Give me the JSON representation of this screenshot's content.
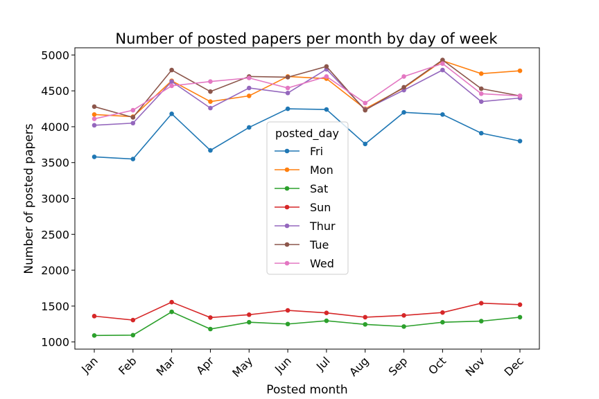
{
  "chart_data": {
    "type": "line",
    "title": "Number of posted papers per month by day of week",
    "xlabel": "Posted month",
    "ylabel": "Number of posted papers",
    "categories": [
      "Jan",
      "Feb",
      "Mar",
      "Apr",
      "May",
      "Jun",
      "Jul",
      "Aug",
      "Sep",
      "Oct",
      "Nov",
      "Dec"
    ],
    "ylim": [
      900,
      5100
    ],
    "yticks": [
      1000,
      1500,
      2000,
      2500,
      3000,
      3500,
      4000,
      4500,
      5000
    ],
    "grid": false,
    "legend": {
      "title": "posted_day",
      "placement": "center"
    },
    "series": [
      {
        "name": "Fri",
        "color": "#1f77b4",
        "values": [
          3580,
          3550,
          4180,
          3670,
          3990,
          4250,
          4240,
          3760,
          4200,
          4170,
          3910,
          3800
        ]
      },
      {
        "name": "Mon",
        "color": "#ff7f0e",
        "values": [
          4170,
          4140,
          4640,
          4350,
          4430,
          4700,
          4670,
          4250,
          4540,
          4920,
          4740,
          4780
        ]
      },
      {
        "name": "Sat",
        "color": "#2ca02c",
        "values": [
          1090,
          1095,
          1420,
          1180,
          1275,
          1250,
          1295,
          1245,
          1215,
          1275,
          1290,
          1345
        ]
      },
      {
        "name": "Sun",
        "color": "#d62728",
        "values": [
          1360,
          1305,
          1555,
          1340,
          1380,
          1440,
          1405,
          1345,
          1370,
          1410,
          1540,
          1520
        ]
      },
      {
        "name": "Thur",
        "color": "#9467bd",
        "values": [
          4020,
          4050,
          4630,
          4260,
          4540,
          4470,
          4800,
          4240,
          4510,
          4790,
          4350,
          4400
        ]
      },
      {
        "name": "Tue",
        "color": "#8c564b",
        "values": [
          4280,
          4130,
          4790,
          4490,
          4700,
          4690,
          4840,
          4230,
          4550,
          4930,
          4530,
          4430
        ]
      },
      {
        "name": "Wed",
        "color": "#e377c2",
        "values": [
          4110,
          4230,
          4570,
          4630,
          4680,
          4540,
          4700,
          4330,
          4700,
          4880,
          4460,
          4430
        ]
      }
    ]
  }
}
